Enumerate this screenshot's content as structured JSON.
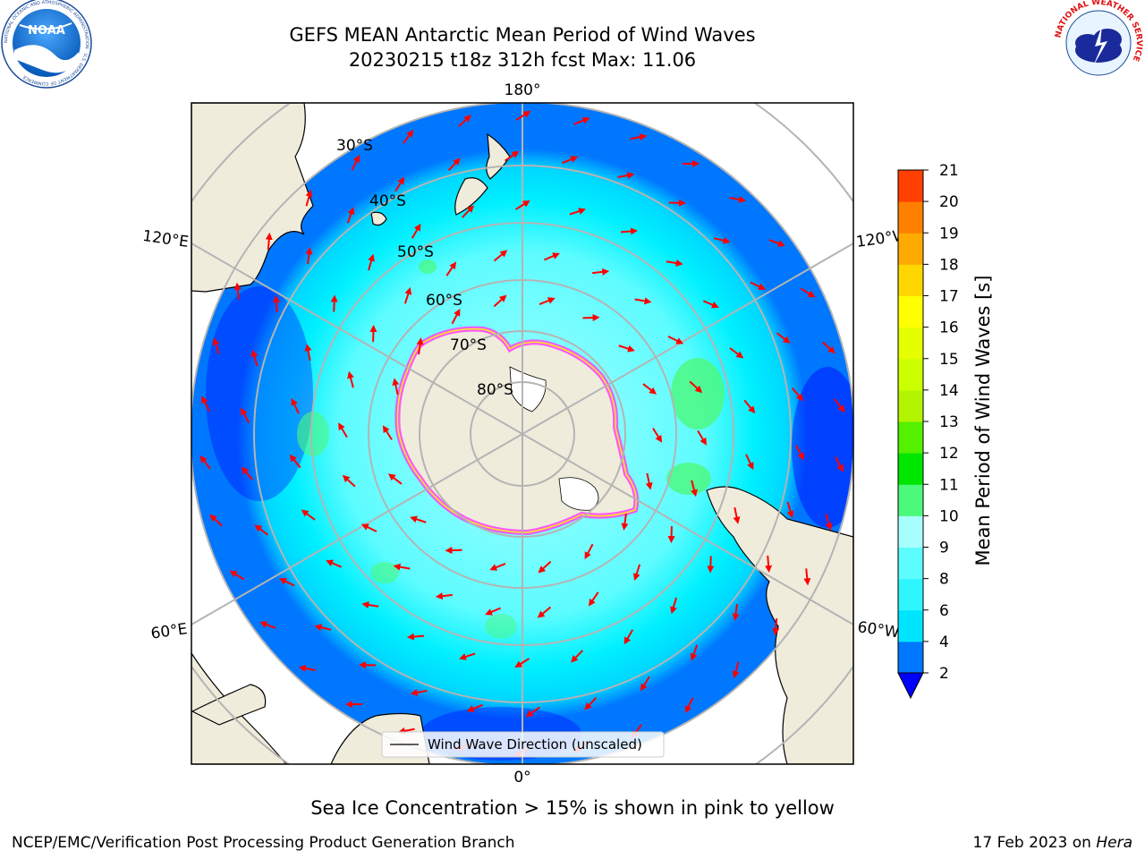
{
  "header": {
    "title_line1": "GEFS MEAN Antarctic Mean Period of Wind Waves",
    "title_line2": "20230215 t18z 312h fcst   Max: 11.06"
  },
  "logos": {
    "left": {
      "text": "NOAA",
      "ring_text": "NATIONAL OCEANIC AND ATMOSPHERIC ADMINISTRATION · U.S. DEPARTMENT OF COMMERCE"
    },
    "right": {
      "ring_text": "NATIONAL WEATHER SERVICE"
    }
  },
  "map": {
    "longitude_labels": {
      "top": "180°",
      "bottom": "0°",
      "upper_left": "120°E",
      "upper_right": "120°W",
      "lower_left": "60°E",
      "lower_right": "60°W"
    },
    "latitude_labels": [
      "30°S",
      "40°S",
      "50°S",
      "60°S",
      "70°S",
      "80°S"
    ],
    "legend_label": "Wind Wave Direction (unscaled)",
    "colors": {
      "ocean_dark": "#0077ff",
      "ocean_mid": "#00e5ff",
      "ocean_light": "#5dfcff",
      "land": "#efecdc",
      "arrow": "#ff0000",
      "ice_pink": "#ff40ff",
      "ice_yellow": "#ffff00",
      "extreme": "#0000ff"
    }
  },
  "colorbar": {
    "label": "Mean Period of Wind Waves [s]",
    "ticks": [
      "2",
      "4",
      "6",
      "8",
      "9",
      "10",
      "11",
      "12",
      "13",
      "14",
      "15",
      "16",
      "17",
      "18",
      "19",
      "20",
      "21"
    ],
    "colors": [
      "#0077ff",
      "#00e5ff",
      "#2ff5ff",
      "#5dfcff",
      "#a8ffff",
      "#4cf97a",
      "#00e600",
      "#53f000",
      "#b3f500",
      "#ccff00",
      "#e5ff00",
      "#ffff00",
      "#ffd600",
      "#ffaa00",
      "#ff8000",
      "#ff4000",
      "#ff0000"
    ],
    "under_color": "#0000ff"
  },
  "caption": "Sea Ice Concentration > 15% is shown in pink to yellow",
  "footer": {
    "left": "NCEP/EMC/Verification Post Processing Product Generation Branch",
    "right_date": "17 Feb 2023 on",
    "right_host": "Hera"
  }
}
